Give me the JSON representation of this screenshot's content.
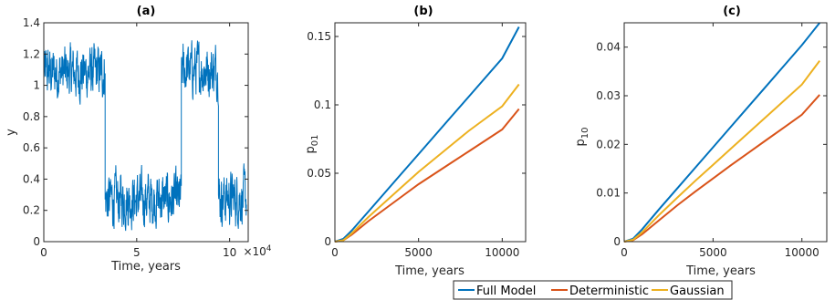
{
  "chart_data": [
    {
      "id": "a",
      "type": "line",
      "title": "(a)",
      "xlabel": "Time, years",
      "ylabel": "y",
      "xlim": [
        0,
        110000
      ],
      "ylim": [
        0,
        1.4
      ],
      "x_ticks": [
        0,
        50000,
        100000
      ],
      "x_tick_labels": [
        "0",
        "5",
        "10"
      ],
      "x_exponent_label": "×10^4",
      "y_ticks": [
        0,
        0.2,
        0.4,
        0.6,
        0.8,
        1.0,
        1.2,
        1.4
      ],
      "y_tick_labels": [
        "0",
        "0.2",
        "0.4",
        "0.6",
        "0.8",
        "1",
        "1.2",
        "1.4"
      ],
      "series": [
        {
          "color": "#0072BD",
          "regimes": [
            {
              "x": [
                0,
                33000
              ],
              "mean": 1.08
            },
            {
              "x": [
                33000,
                74000
              ],
              "mean": 0.27
            },
            {
              "x": [
                74000,
                94000
              ],
              "mean": 1.1
            },
            {
              "x": [
                94000,
                109000
              ],
              "mean": 0.28
            }
          ]
        }
      ]
    },
    {
      "id": "b",
      "type": "line",
      "title": "(b)",
      "xlabel": "Time, years",
      "ylabel": "p",
      "ylabel_sub": "01",
      "xlim": [
        0,
        11400
      ],
      "ylim": [
        0,
        0.16
      ],
      "x_ticks": [
        0,
        5000,
        10000
      ],
      "x_tick_labels": [
        "0",
        "5000",
        "10000"
      ],
      "y_ticks": [
        0,
        0.05,
        0.1,
        0.15
      ],
      "y_tick_labels": [
        "0",
        "0.05",
        "0.1",
        "0.15"
      ],
      "series": [
        {
          "name": "Full Model",
          "color": "#0072BD",
          "x": [
            0,
            500,
            1000,
            2000,
            3000,
            4000,
            5000,
            6000,
            7000,
            8000,
            9000,
            10000,
            11000
          ],
          "y": [
            0,
            0.002,
            0.008,
            0.022,
            0.036,
            0.05,
            0.064,
            0.078,
            0.092,
            0.106,
            0.12,
            0.134,
            0.157
          ]
        },
        {
          "name": "Deterministic",
          "color": "#D95319",
          "x": [
            0,
            500,
            1000,
            2000,
            3000,
            4000,
            5000,
            6000,
            7000,
            8000,
            9000,
            10000,
            11000
          ],
          "y": [
            0,
            0.001,
            0.005,
            0.015,
            0.024,
            0.033,
            0.042,
            0.05,
            0.058,
            0.066,
            0.074,
            0.082,
            0.097
          ]
        },
        {
          "name": "Gaussian",
          "color": "#EDB120",
          "x": [
            0,
            500,
            1000,
            2000,
            3000,
            4000,
            5000,
            6000,
            7000,
            8000,
            9000,
            10000,
            11000
          ],
          "y": [
            0,
            0.001,
            0.006,
            0.018,
            0.029,
            0.04,
            0.051,
            0.061,
            0.071,
            0.081,
            0.09,
            0.099,
            0.115
          ]
        }
      ]
    },
    {
      "id": "c",
      "type": "line",
      "title": "(c)",
      "xlabel": "Time, years",
      "ylabel": "p",
      "ylabel_sub": "10",
      "xlim": [
        0,
        11400
      ],
      "ylim": [
        0,
        0.045
      ],
      "x_ticks": [
        0,
        5000,
        10000
      ],
      "x_tick_labels": [
        "0",
        "5000",
        "10000"
      ],
      "y_ticks": [
        0,
        0.01,
        0.02,
        0.03,
        0.04
      ],
      "y_tick_labels": [
        "0",
        "0.01",
        "0.02",
        "0.03",
        "0.04"
      ],
      "series": [
        {
          "name": "Full Model",
          "color": "#0072BD",
          "x": [
            0,
            500,
            1000,
            2000,
            3000,
            4000,
            5000,
            6000,
            7000,
            8000,
            9000,
            10000,
            11000
          ],
          "y": [
            0,
            0.0006,
            0.0025,
            0.0068,
            0.011,
            0.0152,
            0.0194,
            0.0236,
            0.0278,
            0.032,
            0.0362,
            0.0404,
            0.045
          ]
        },
        {
          "name": "Deterministic",
          "color": "#D95319",
          "x": [
            0,
            500,
            1000,
            2000,
            3000,
            4000,
            5000,
            6000,
            7000,
            8000,
            9000,
            10000,
            11000
          ],
          "y": [
            0,
            0.0003,
            0.0015,
            0.0045,
            0.0075,
            0.0103,
            0.013,
            0.0157,
            0.0183,
            0.0209,
            0.0235,
            0.0261,
            0.0302
          ]
        },
        {
          "name": "Gaussian",
          "color": "#EDB120",
          "x": [
            0,
            500,
            1000,
            2000,
            3000,
            4000,
            5000,
            6000,
            7000,
            8000,
            9000,
            10000,
            11000
          ],
          "y": [
            0,
            0.0004,
            0.0019,
            0.0056,
            0.0091,
            0.0125,
            0.0158,
            0.0191,
            0.0224,
            0.0257,
            0.029,
            0.0323,
            0.0372
          ]
        }
      ]
    }
  ],
  "legend": {
    "placement": "bottom-right",
    "entries": [
      {
        "label": "Full Model",
        "color": "#0072BD"
      },
      {
        "label": "Deterministic",
        "color": "#D95319"
      },
      {
        "label": "Gaussian",
        "color": "#EDB120"
      }
    ]
  }
}
